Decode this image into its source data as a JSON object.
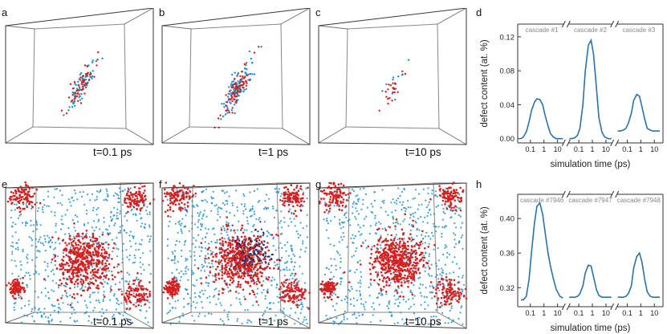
{
  "figure": {
    "letters": [
      "a",
      "b",
      "c",
      "d",
      "e",
      "f",
      "g",
      "h"
    ],
    "time_labels_top": [
      "t=0.1 ps",
      "t=1 ps",
      "t=10 ps"
    ],
    "time_labels_bottom": [
      "t=0.1 ps",
      "t=1 ps",
      "t=10 ps"
    ]
  },
  "colors": {
    "vacancy": "#d62020",
    "interstitial": "#1f8fd0",
    "line": "#2b72a8",
    "box": "#222222"
  },
  "chart_data": [
    {
      "type": "line",
      "panel": "d",
      "ylabel": "defect content (at. %)",
      "xlabel": "simulation time (ps)",
      "ylim": [
        -0.005,
        0.135
      ],
      "yticks": [
        "0.00",
        "0.04",
        "0.08",
        "0.12"
      ],
      "log_x_per_segment": true,
      "segment_xticks": [
        "0.1",
        "1",
        "10"
      ],
      "segments": [
        {
          "label": "cascade #1",
          "x": [
            0.02,
            0.03,
            0.05,
            0.08,
            0.12,
            0.2,
            0.3,
            0.5,
            0.8,
            1.2,
            2,
            3,
            5,
            8,
            15,
            25
          ],
          "y": [
            0.0,
            0.002,
            0.008,
            0.02,
            0.033,
            0.043,
            0.047,
            0.046,
            0.04,
            0.028,
            0.015,
            0.006,
            0.002,
            0.0,
            0.0,
            0.0
          ]
        },
        {
          "label": "cascade #2",
          "x": [
            0.02,
            0.03,
            0.05,
            0.08,
            0.12,
            0.2,
            0.3,
            0.5,
            0.8,
            1.2,
            2,
            3,
            5,
            8,
            15,
            25
          ],
          "y": [
            0.0,
            0.0,
            0.001,
            0.004,
            0.012,
            0.04,
            0.08,
            0.11,
            0.116,
            0.1,
            0.06,
            0.025,
            0.008,
            0.002,
            0.0,
            0.0
          ]
        },
        {
          "label": "cascade #3",
          "x": [
            0.02,
            0.03,
            0.05,
            0.08,
            0.12,
            0.2,
            0.3,
            0.5,
            0.8,
            1.2,
            2,
            3,
            5,
            8,
            15,
            25
          ],
          "y": [
            0.009,
            0.009,
            0.01,
            0.012,
            0.018,
            0.03,
            0.045,
            0.052,
            0.05,
            0.038,
            0.022,
            0.012,
            0.01,
            0.009,
            0.009,
            0.009
          ]
        }
      ]
    },
    {
      "type": "line",
      "panel": "h",
      "ylabel": "defect content (at. %)",
      "xlabel": "simulation time (ps)",
      "ylim": [
        0.298,
        0.428
      ],
      "yticks": [
        "0.32",
        "0.36",
        "0.40"
      ],
      "log_x_per_segment": true,
      "segment_xticks": [
        "0.1",
        "1",
        "10"
      ],
      "segments": [
        {
          "label": "cascade #7946",
          "x": [
            0.02,
            0.03,
            0.05,
            0.08,
            0.12,
            0.2,
            0.3,
            0.5,
            0.8,
            1.2,
            2,
            3,
            5,
            8,
            15,
            25
          ],
          "y": [
            0.306,
            0.306,
            0.31,
            0.33,
            0.36,
            0.395,
            0.414,
            0.418,
            0.405,
            0.385,
            0.36,
            0.345,
            0.33,
            0.318,
            0.31,
            0.308
          ]
        },
        {
          "label": "cascade #7947",
          "x": [
            0.02,
            0.03,
            0.05,
            0.08,
            0.12,
            0.2,
            0.3,
            0.5,
            0.8,
            1.2,
            2,
            3,
            5,
            8,
            15,
            25
          ],
          "y": [
            0.309,
            0.309,
            0.309,
            0.31,
            0.313,
            0.322,
            0.337,
            0.346,
            0.345,
            0.333,
            0.318,
            0.311,
            0.309,
            0.309,
            0.309,
            0.309
          ]
        },
        {
          "label": "cascade #7948",
          "x": [
            0.02,
            0.03,
            0.05,
            0.08,
            0.12,
            0.2,
            0.3,
            0.5,
            0.8,
            1.2,
            2,
            3,
            5,
            8,
            15,
            25
          ],
          "y": [
            0.309,
            0.309,
            0.309,
            0.31,
            0.313,
            0.322,
            0.343,
            0.356,
            0.36,
            0.35,
            0.328,
            0.315,
            0.31,
            0.309,
            0.309,
            0.309
          ]
        }
      ]
    }
  ]
}
